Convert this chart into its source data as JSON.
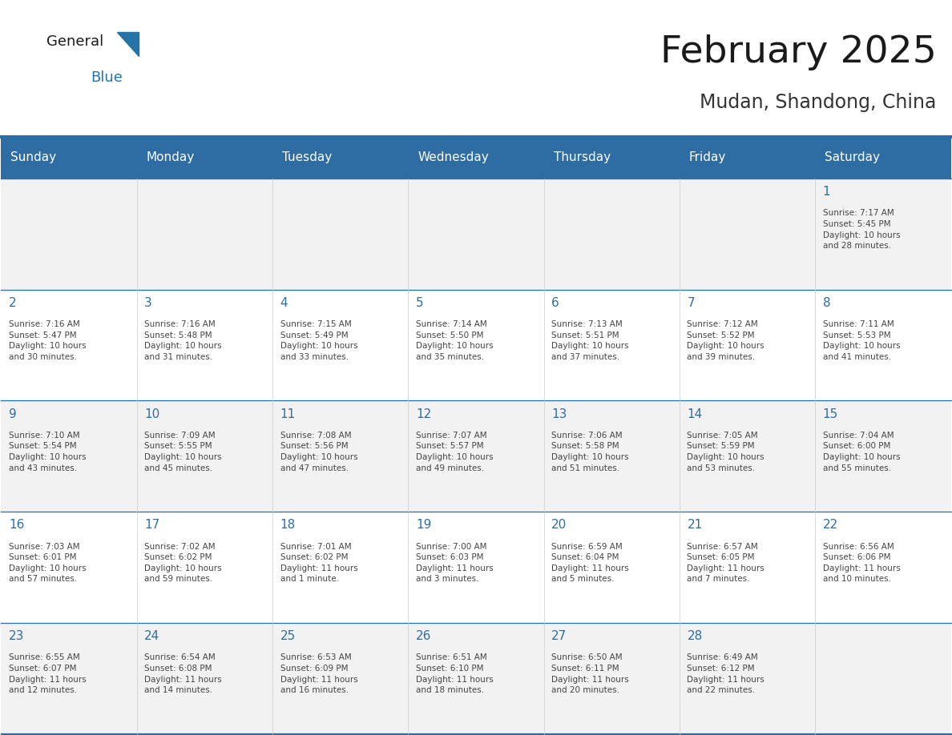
{
  "title": "February 2025",
  "subtitle": "Mudan, Shandong, China",
  "header_bg": "#2E6DA4",
  "header_text_color": "#FFFFFF",
  "cell_bg_light": "#F2F2F2",
  "cell_bg_white": "#FFFFFF",
  "day_number_color": "#2E6DA4",
  "text_color": "#444444",
  "line_color": "#2E6DA4",
  "days_of_week": [
    "Sunday",
    "Monday",
    "Tuesday",
    "Wednesday",
    "Thursday",
    "Friday",
    "Saturday"
  ],
  "weeks": [
    [
      {
        "day": 0,
        "info": ""
      },
      {
        "day": 0,
        "info": ""
      },
      {
        "day": 0,
        "info": ""
      },
      {
        "day": 0,
        "info": ""
      },
      {
        "day": 0,
        "info": ""
      },
      {
        "day": 0,
        "info": ""
      },
      {
        "day": 1,
        "info": "Sunrise: 7:17 AM\nSunset: 5:45 PM\nDaylight: 10 hours\nand 28 minutes."
      }
    ],
    [
      {
        "day": 2,
        "info": "Sunrise: 7:16 AM\nSunset: 5:47 PM\nDaylight: 10 hours\nand 30 minutes."
      },
      {
        "day": 3,
        "info": "Sunrise: 7:16 AM\nSunset: 5:48 PM\nDaylight: 10 hours\nand 31 minutes."
      },
      {
        "day": 4,
        "info": "Sunrise: 7:15 AM\nSunset: 5:49 PM\nDaylight: 10 hours\nand 33 minutes."
      },
      {
        "day": 5,
        "info": "Sunrise: 7:14 AM\nSunset: 5:50 PM\nDaylight: 10 hours\nand 35 minutes."
      },
      {
        "day": 6,
        "info": "Sunrise: 7:13 AM\nSunset: 5:51 PM\nDaylight: 10 hours\nand 37 minutes."
      },
      {
        "day": 7,
        "info": "Sunrise: 7:12 AM\nSunset: 5:52 PM\nDaylight: 10 hours\nand 39 minutes."
      },
      {
        "day": 8,
        "info": "Sunrise: 7:11 AM\nSunset: 5:53 PM\nDaylight: 10 hours\nand 41 minutes."
      }
    ],
    [
      {
        "day": 9,
        "info": "Sunrise: 7:10 AM\nSunset: 5:54 PM\nDaylight: 10 hours\nand 43 minutes."
      },
      {
        "day": 10,
        "info": "Sunrise: 7:09 AM\nSunset: 5:55 PM\nDaylight: 10 hours\nand 45 minutes."
      },
      {
        "day": 11,
        "info": "Sunrise: 7:08 AM\nSunset: 5:56 PM\nDaylight: 10 hours\nand 47 minutes."
      },
      {
        "day": 12,
        "info": "Sunrise: 7:07 AM\nSunset: 5:57 PM\nDaylight: 10 hours\nand 49 minutes."
      },
      {
        "day": 13,
        "info": "Sunrise: 7:06 AM\nSunset: 5:58 PM\nDaylight: 10 hours\nand 51 minutes."
      },
      {
        "day": 14,
        "info": "Sunrise: 7:05 AM\nSunset: 5:59 PM\nDaylight: 10 hours\nand 53 minutes."
      },
      {
        "day": 15,
        "info": "Sunrise: 7:04 AM\nSunset: 6:00 PM\nDaylight: 10 hours\nand 55 minutes."
      }
    ],
    [
      {
        "day": 16,
        "info": "Sunrise: 7:03 AM\nSunset: 6:01 PM\nDaylight: 10 hours\nand 57 minutes."
      },
      {
        "day": 17,
        "info": "Sunrise: 7:02 AM\nSunset: 6:02 PM\nDaylight: 10 hours\nand 59 minutes."
      },
      {
        "day": 18,
        "info": "Sunrise: 7:01 AM\nSunset: 6:02 PM\nDaylight: 11 hours\nand 1 minute."
      },
      {
        "day": 19,
        "info": "Sunrise: 7:00 AM\nSunset: 6:03 PM\nDaylight: 11 hours\nand 3 minutes."
      },
      {
        "day": 20,
        "info": "Sunrise: 6:59 AM\nSunset: 6:04 PM\nDaylight: 11 hours\nand 5 minutes."
      },
      {
        "day": 21,
        "info": "Sunrise: 6:57 AM\nSunset: 6:05 PM\nDaylight: 11 hours\nand 7 minutes."
      },
      {
        "day": 22,
        "info": "Sunrise: 6:56 AM\nSunset: 6:06 PM\nDaylight: 11 hours\nand 10 minutes."
      }
    ],
    [
      {
        "day": 23,
        "info": "Sunrise: 6:55 AM\nSunset: 6:07 PM\nDaylight: 11 hours\nand 12 minutes."
      },
      {
        "day": 24,
        "info": "Sunrise: 6:54 AM\nSunset: 6:08 PM\nDaylight: 11 hours\nand 14 minutes."
      },
      {
        "day": 25,
        "info": "Sunrise: 6:53 AM\nSunset: 6:09 PM\nDaylight: 11 hours\nand 16 minutes."
      },
      {
        "day": 26,
        "info": "Sunrise: 6:51 AM\nSunset: 6:10 PM\nDaylight: 11 hours\nand 18 minutes."
      },
      {
        "day": 27,
        "info": "Sunrise: 6:50 AM\nSunset: 6:11 PM\nDaylight: 11 hours\nand 20 minutes."
      },
      {
        "day": 28,
        "info": "Sunrise: 6:49 AM\nSunset: 6:12 PM\nDaylight: 11 hours\nand 22 minutes."
      },
      {
        "day": 0,
        "info": ""
      }
    ]
  ]
}
